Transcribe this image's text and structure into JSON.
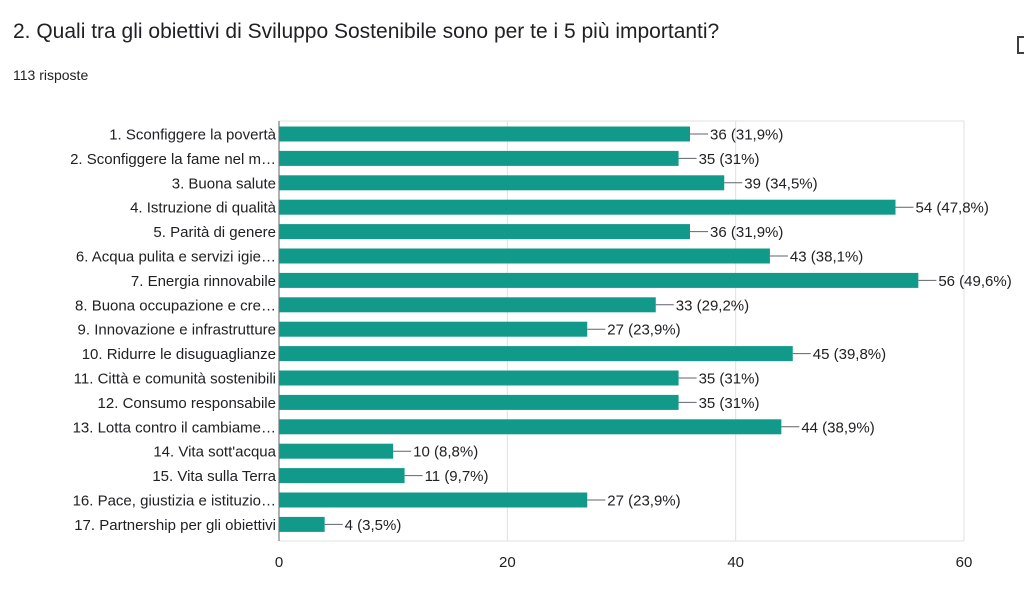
{
  "question": {
    "title": "2. Quali tra gli obiettivi di Sviluppo Sostenibile sono per te i 5 più importanti?",
    "responses": "113 risposte"
  },
  "chart_data": {
    "type": "bar",
    "orientation": "horizontal",
    "bar_color": "#11998a",
    "grid": true,
    "xlim": [
      0,
      60
    ],
    "x_ticks": [
      0,
      20,
      40,
      60
    ],
    "categories": [
      "1. Sconfiggere la povertà",
      "2. Sconfiggere la fame nel m…",
      "3. Buona salute",
      "4. Istruzione di qualità",
      "5. Parità di genere",
      "6. Acqua pulita e servizi igie…",
      "7. Energia rinnovabile",
      "8. Buona occupazione e cre…",
      "9. Innovazione e infrastrutture",
      "10. Ridurre le disuguaglianze",
      "11. Città e comunità sostenibili",
      "12. Consumo responsabile",
      "13. Lotta contro il cambiame…",
      "14. Vita sott'acqua",
      "15. Vita sulla Terra",
      "16. Pace, giustizia e istituzio…",
      "17. Partnership per gli obiettivi"
    ],
    "values": [
      36,
      35,
      39,
      54,
      36,
      43,
      56,
      33,
      27,
      45,
      35,
      35,
      44,
      10,
      11,
      27,
      4
    ],
    "data_labels": [
      "36 (31,9%)",
      "35 (31%)",
      "39 (34,5%)",
      "54 (47,8%)",
      "36 (31,9%)",
      "43 (38,1%)",
      "56 (49,6%)",
      "33 (29,2%)",
      "27 (23,9%)",
      "45 (39,8%)",
      "35 (31%)",
      "35 (31%)",
      "44 (38,9%)",
      "10 (8,8%)",
      "11 (9,7%)",
      "27 (23,9%)",
      "4 (3,5%)"
    ]
  }
}
